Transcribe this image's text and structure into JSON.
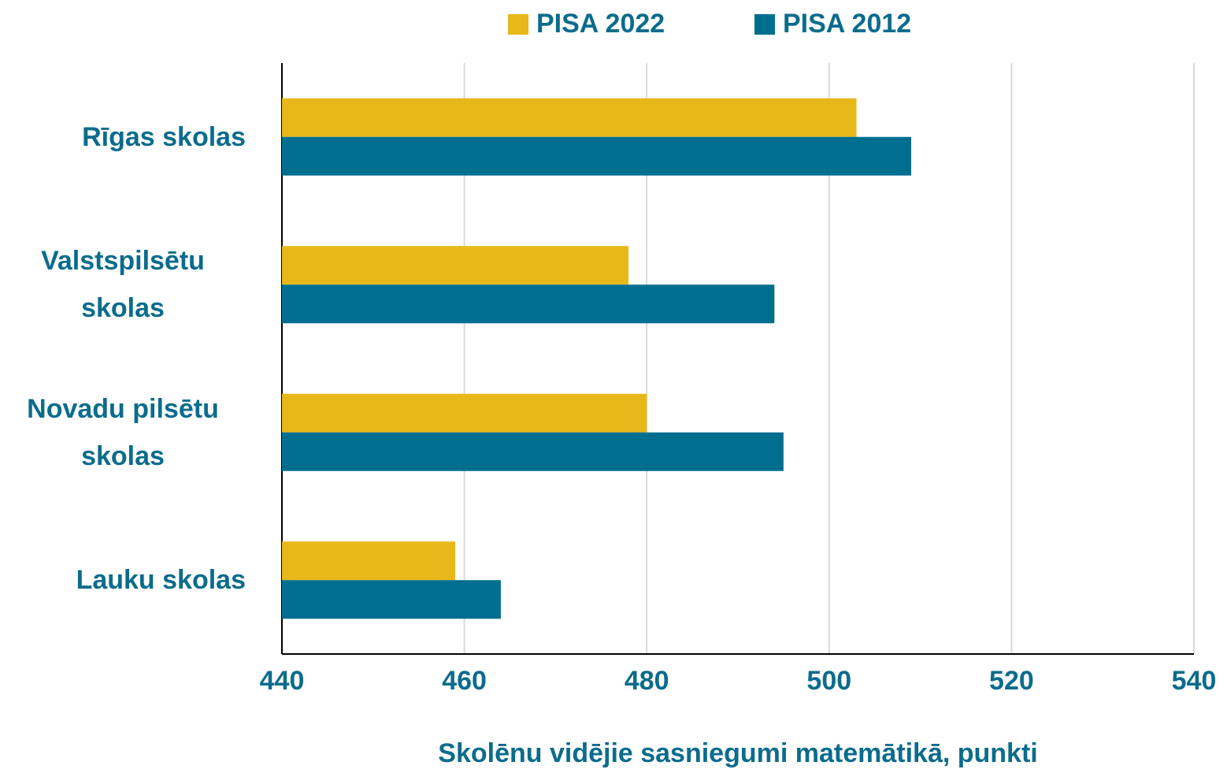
{
  "chart_data": {
    "type": "barh",
    "categories": [
      "Rīgas skolas",
      "Valstspilsētu skolas",
      "Novadu pilsētu skolas",
      "Lauku skolas"
    ],
    "series": [
      {
        "name": "PISA 2022",
        "color": "#e8b71a",
        "values": [
          503,
          478,
          480,
          459
        ]
      },
      {
        "name": "PISA 2012",
        "color": "#006f8f",
        "values": [
          509,
          494,
          495,
          464
        ]
      }
    ],
    "xlim": [
      440,
      540
    ],
    "xticks": [
      440,
      460,
      480,
      500,
      520,
      540
    ],
    "xlabel": "Skolēnu vidējie sasniegumi matemātikā, punkti",
    "grid": true,
    "legend": "top"
  }
}
